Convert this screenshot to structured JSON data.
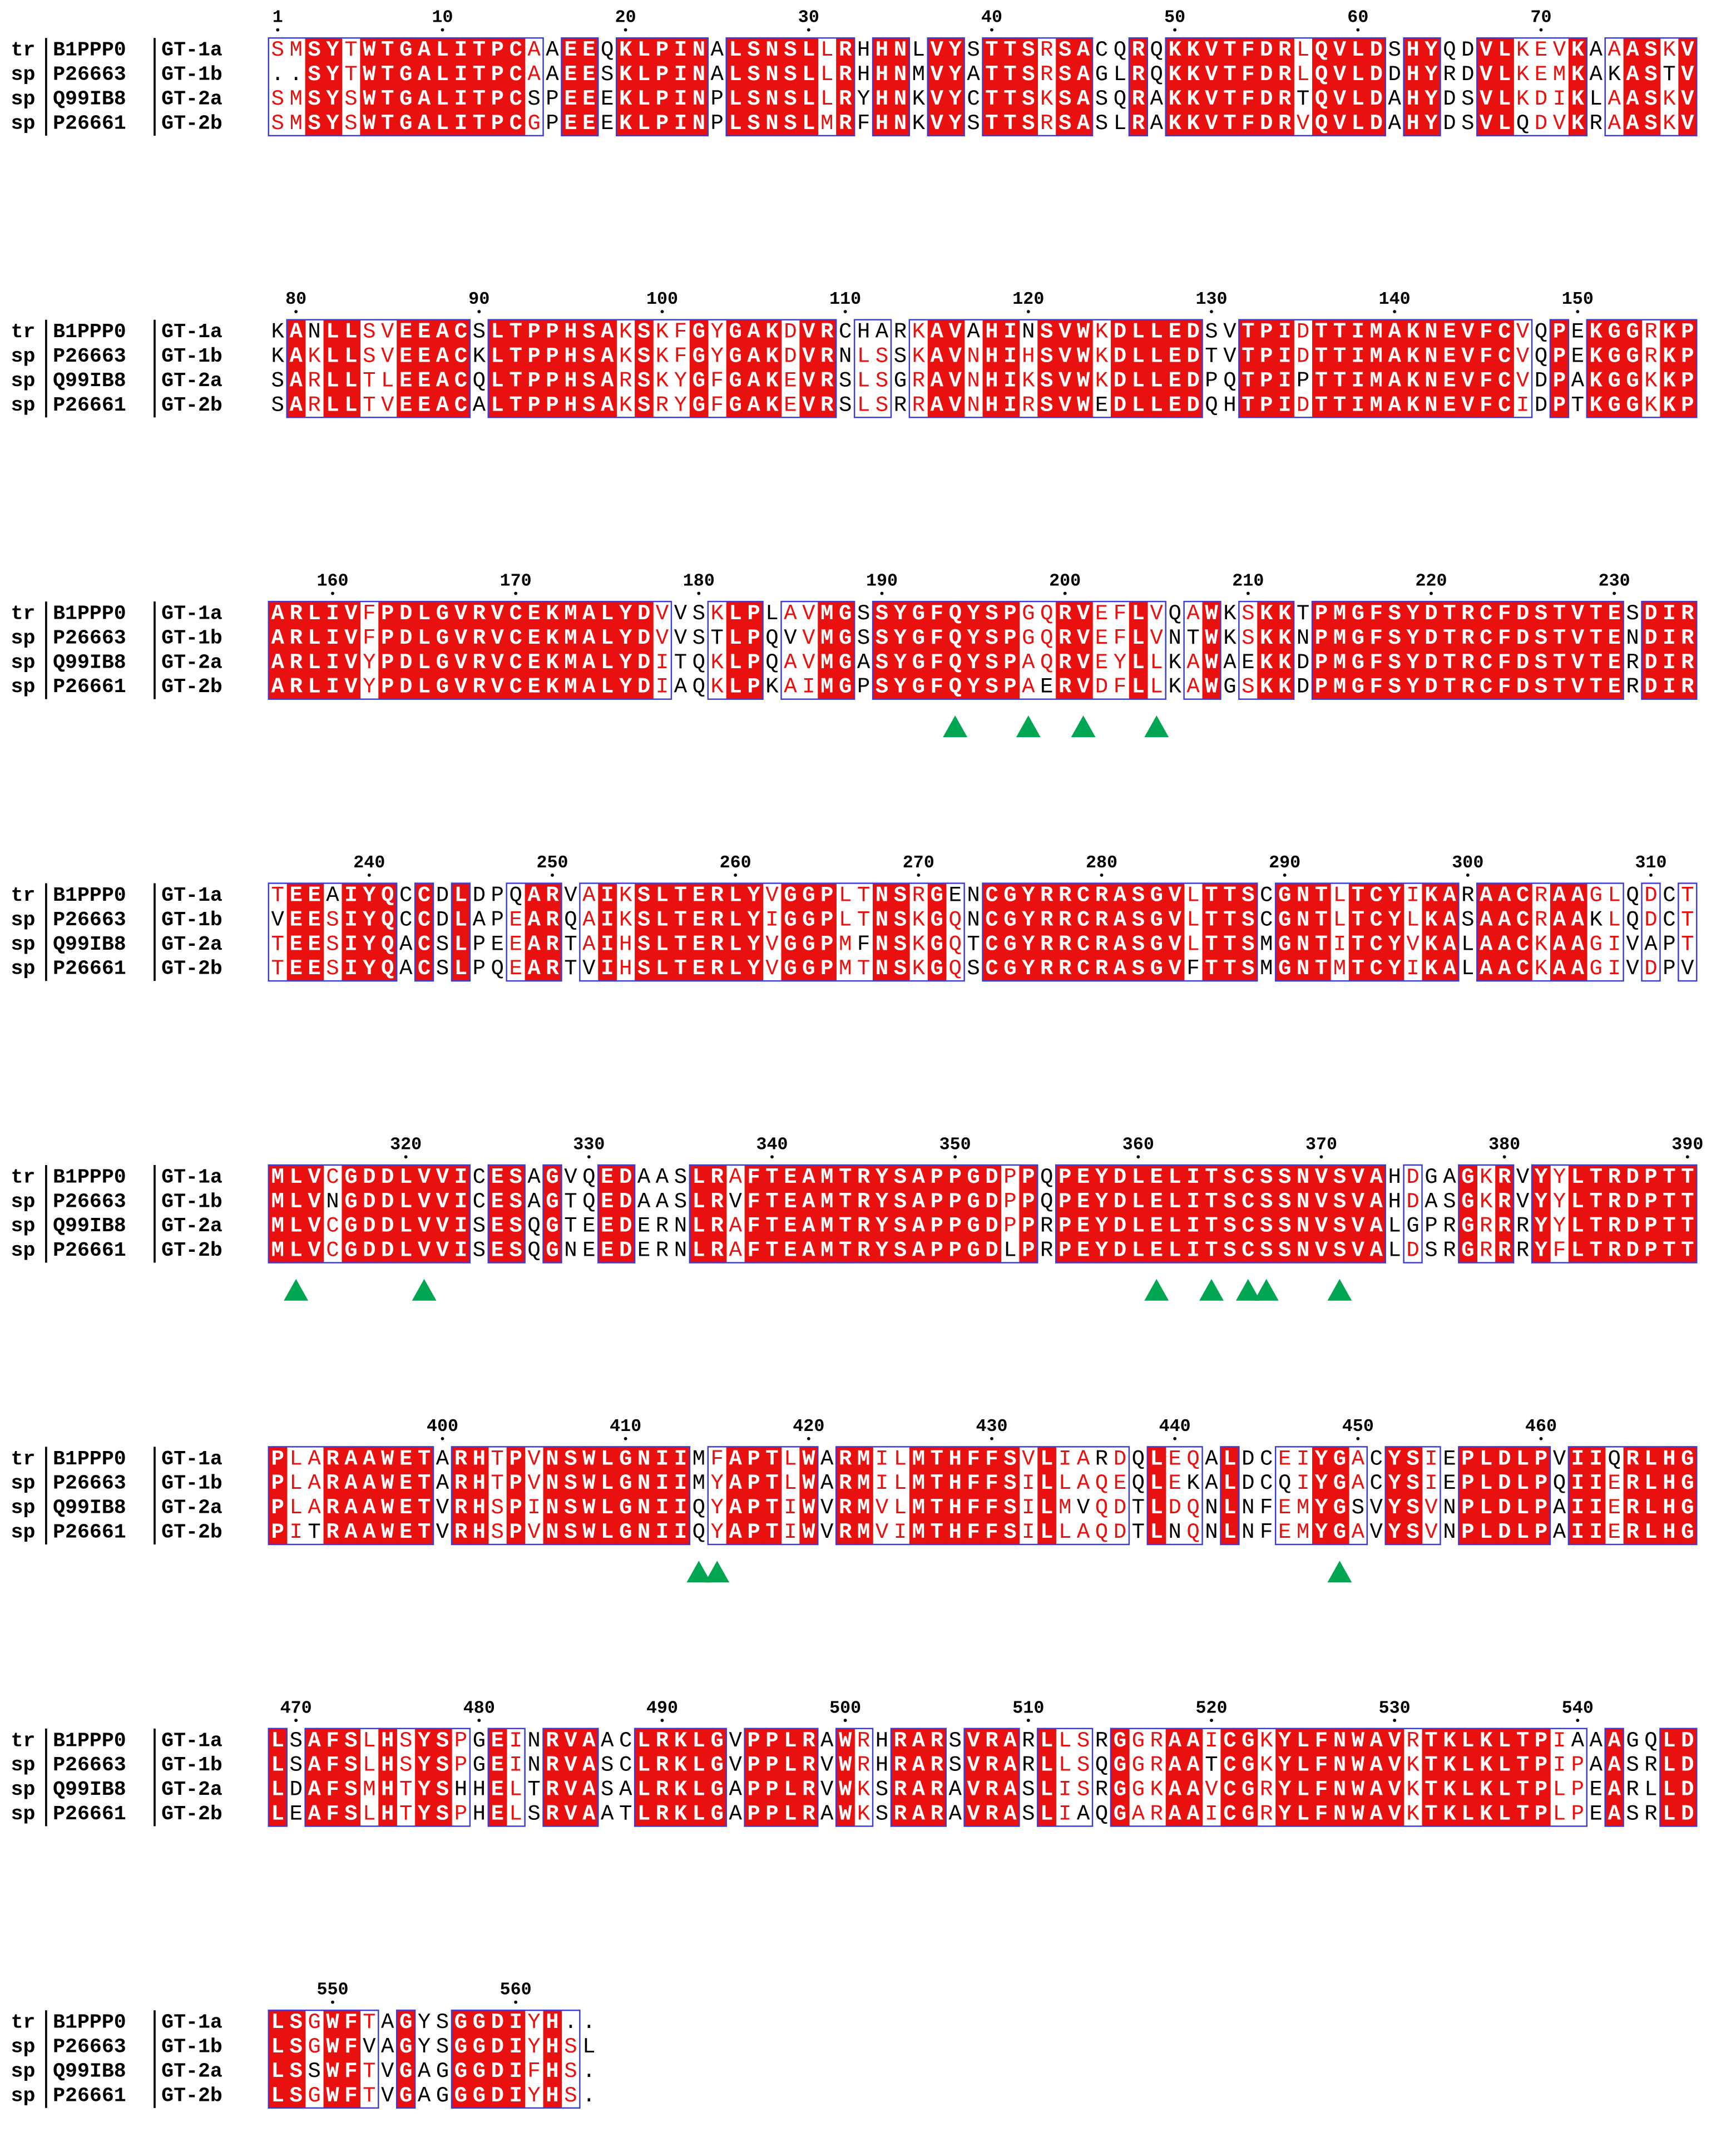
{
  "sequences": [
    {
      "db": "tr",
      "id": "B1PPP0",
      "name": "GT-1a"
    },
    {
      "db": "sp",
      "id": "P26663",
      "name": "GT-1b"
    },
    {
      "db": "sp",
      "id": "Q99IB8",
      "name": "GT-2a"
    },
    {
      "db": "sp",
      "id": "P26661",
      "name": "GT-2b"
    }
  ],
  "blocks": [
    {
      "ticks": [
        1,
        10,
        20,
        30,
        40,
        50,
        60,
        70
      ],
      "rows": [
        "SMSYTWTGALITPCAAEEQKLPINALSNSLLRHHNLVYSTTSRSACQRQKKVTFDRLQVLDSHYQDVLKEVKAAASKV",
        "..SYTWTGALITPCAAEESKLPINALSNSLLRHHNMVYATTSRSAGLRQKKVTFDRLQVLDDHYRDVLKEMKAKASTV",
        "SMSYSWTGALITPCSPEEEKLPINPLSNSLLRYHNKVYCTTSKSASQRAKKVTFDRTQVLDAHYDSVLKDIKLAASKV",
        "SMSYSWTGALITPCGPEEEKLPINPLSNSLMRFHNKVYSTTSRSASLRAKKVTFDRVQVLDAHYDSVLQDVKRAASKV"
      ]
    },
    {
      "ticks": [
        80,
        90,
        100,
        110,
        120,
        130,
        140,
        150
      ],
      "rows": [
        "KANLLSVEEACSLTPPHSAKSKFGYGAKDVRCHARKAVAHINSVWKDLLEDSVTPIDTTIMAKNEVFCVQPEKGGRKP",
        "KAKLLSVEEACKLTPPHSAKSKFGYGAKDVRNLSSKAVNHIHSVWKDLLEDTVTPIDTTIMAKNEVFCVQPEKGGRKP",
        "SARLLTLEEACQLTPPHSARSKYGFGAKEVRSLSGRAVNHIKSVWKDLLEDPQTPIPTTIMAKNEVFCVDPAKGGKKP",
        "SARLLTVEEACALTPPHSAKSRYGFGAKEVRSLSRRAVNHIRSVWEDLLEDQHTPIDTTIMAKNEVFCIDPTKGGKKP"
      ]
    },
    {
      "ticks": [
        160,
        170,
        180,
        190,
        200,
        210,
        220,
        230
      ],
      "rows": [
        "ARLIVFPDLGVRVCEKMALYDVVSKLPLAVMGSSYGFQYSPGQRVEFLVQAWKSKKTPMGFSYDTRCFDSTVTESDIR",
        "ARLIVFPDLGVRVCEKMALYDVVSTLPQVVMGSSYGFQYSPGQRVEFLVNTWKSKKNPMGFSYDTRCFDSTVTENDIR",
        "ARLIVYPDLGVRVCEKMALYDITQKLPQAVMGASYGFQYSPAQRVEYLLKAWAEKKDPMGFSYDTRCFDSTVTERDIR",
        "ARLIVYPDLGVRVCEKMALYDIAQKLPKAIMGPSYGFQYSPAERVDFLLKAWGSKKDPMGFSYDTRCFDSTVTERDIR"
      ]
    },
    {
      "ticks": [
        240,
        250,
        260,
        270,
        280,
        290,
        300,
        310
      ],
      "rows": [
        "TEEAIYQCCDLDPQARVAIKSLTERLYVGGPLTNSRGENCGYRRCRASGVLTTSCGNTLTCYIKARAACRAAGLQDCT",
        "VEESIYQCCDLAPEARQAIKSLTERLYIGGPLTNSKGQNCGYRRCRASGVLTTSCGNTLTCYLKASAACRAAKLQDCT",
        "TEESIYQACSLPEEARTAIHSLTERLYVGGPMFNSKGQTCGYRRCRASGVLTTSMGNTITCYVKALAACKAAGIVAPT",
        "TEESIYQACSLPQEARTVIHSLTERLYVGGPMTNSKGQSCGYRRCRASGVFTTSMGNTMTCYIKALAACKAAGIVDPV"
      ]
    },
    {
      "ticks": [
        320,
        330,
        340,
        350,
        360,
        370,
        380,
        390
      ],
      "rows": [
        "MLVCGDDLVVICESAGVQEDAASLRAFTEAMTRYSAPPGDPPQPEYDLELITSCSSNVSVAHDGAGKRVYYLTRDPTT",
        "MLVNGDDLVVICESAGTQEDAASLRVFTEAMTRYSAPPGDPPQPEYDLELITSCSSNVSVAHDASGKRVYYLTRDPTT",
        "MLVCGDDLVVISESQGTEEDERNLRAFTEAMTRYSAPPGDPPRPEYDLELITSCSSNVSVALGPRGRRRYYLTRDPTT",
        "MLVCGDDLVVISESQGNEEDERNLRAFTEAMTRYSAPPGDLPRPEYDLELITSCSSNVSVALDSRGRRRYFLTRDPTT"
      ]
    },
    {
      "ticks": [
        400,
        410,
        420,
        430,
        440,
        450,
        460
      ],
      "rows": [
        "PLARAAWETARHTPVNSWLGNIIMFAPTLWARMILMTHFFSVLIARDQLEQALDCEIYGACYSIEPLDLPVIIQRLHG",
        "PLARAAWETARHTPVNSWLGNIIMYAPTLWARMILMTHFFSILLAQEQLEKALDCQIYGACYSIEPLDLPQIIERLHG",
        "PLARAAWETVRHSPINSWLGNIIQYAPTIWVRMVLMTHFFSILMVQDTLDQNLNFEMYGSVYSVNPLDLPAIIERLHG",
        "PITRAAWETVRHSPVNSWLGNIIQYAPTIWVRMVIMTHFFSILLAQDTLNQNLNFEMYGAVYSVNPLDLPAIIERLHG"
      ]
    },
    {
      "ticks": [
        470,
        480,
        490,
        500,
        510,
        520,
        530,
        540
      ],
      "rows": [
        "LSAFSLHSYSPGEINRVAACLRKLGVPPLRAWRHRARSVRARLLSRGGRAAICGKYLFNWAVRTKLKLTPIAAAGQLD",
        "LSAFSLHSYSPGEINRVASCLRKLGVPPLRVWRHRARSVRARLLSQGGRAATCGKYLFNWAVKTKLKLTPIPAASRLD",
        "LDAFSMHTYSHHELTRVASALRKLGAPPLRVWKSRARAVRASLISRGGKAAVCGRYLFNWAVKTKLKLTPLPEARLLD",
        "LEAFSLHTYSPHELSRVAATLRKLGAPPLRAWKSRARAVRASLIAQGARAAICGRYLFNWAVKTKLKLTPLPEASRLD"
      ]
    },
    {
      "ticks": [
        550,
        560
      ],
      "rows": [
        "LSGWFTAGYSGGDIYH..",
        "LSGWFVAGYSGGDIYHSL",
        "LSSWFTVGAGGGDIFHS.",
        "LSGWFTVGAGGGDIYHS."
      ]
    }
  ]
}
